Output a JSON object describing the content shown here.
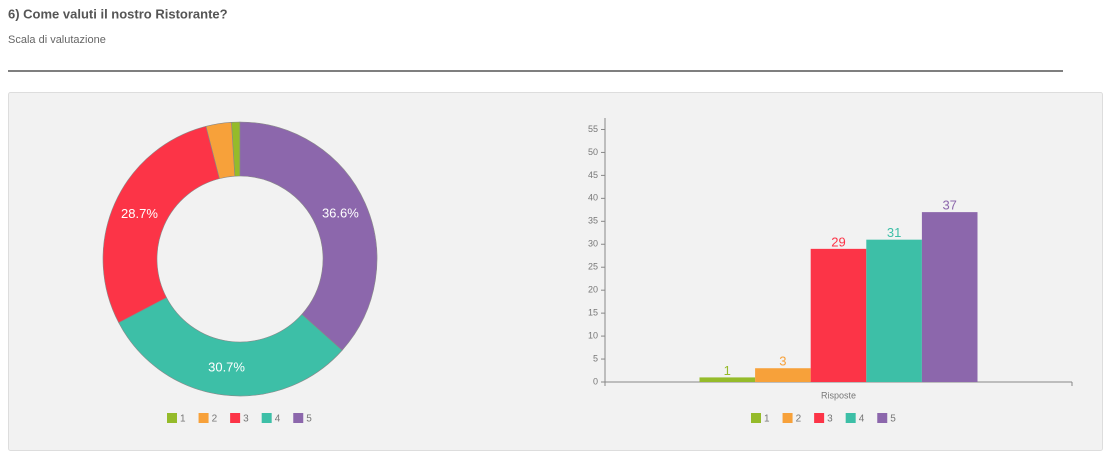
{
  "header": {
    "title": "6) Come valuti il nostro Ristorante?",
    "subtitle": "Scala di valutazione"
  },
  "chart_data": [
    {
      "type": "pie",
      "donut": true,
      "categories": [
        "1",
        "2",
        "3",
        "4",
        "5"
      ],
      "values": [
        1.0,
        3.0,
        28.7,
        30.7,
        36.6
      ],
      "value_labels": [
        null,
        null,
        "28.7%",
        "30.7%",
        "36.6%"
      ],
      "colors": [
        "#95bb2a",
        "#f7a13a",
        "#fc3447",
        "#3dbfa7",
        "#8c67ac"
      ]
    },
    {
      "type": "bar",
      "categories": [
        "Risposte"
      ],
      "series": [
        {
          "name": "1",
          "color": "#95bb2a",
          "values": [
            1
          ]
        },
        {
          "name": "2",
          "color": "#f7a13a",
          "values": [
            3
          ]
        },
        {
          "name": "3",
          "color": "#fc3447",
          "values": [
            29
          ]
        },
        {
          "name": "4",
          "color": "#3dbfa7",
          "values": [
            31
          ]
        },
        {
          "name": "5",
          "color": "#8c67ac",
          "values": [
            37
          ]
        }
      ],
      "ylim": [
        0,
        57.5
      ],
      "yticks": [
        0,
        5,
        10,
        15,
        20,
        25,
        30,
        35,
        40,
        45,
        50,
        55
      ]
    }
  ]
}
